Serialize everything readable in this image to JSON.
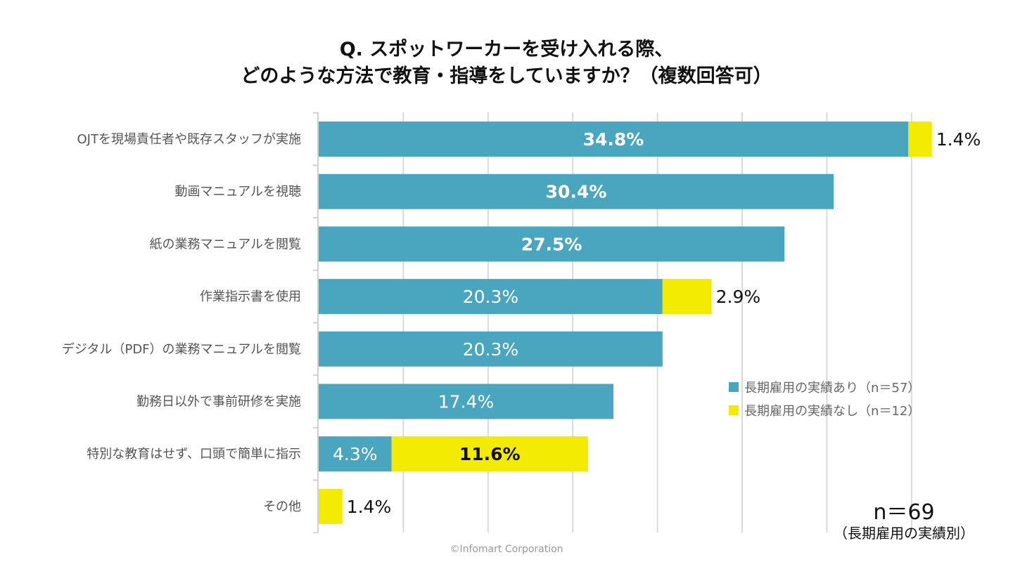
{
  "chart_data": {
    "type": "bar",
    "orientation": "horizontal",
    "stacked": true,
    "title": [
      "Q. スポットワーカーを受け入れる際、",
      "どのような方法で教育・指導をしていますか？（複数回答可）"
    ],
    "categories": [
      "OJTを現場責任者や既存スタッフが実施",
      "動画マニュアルを視聴",
      "紙の業務マニュアルを閲覧",
      "作業指示書を使用",
      "デジタル（PDF）の業務マニュアルを閲覧",
      "勤務日以外で事前研修を実施",
      "特別な教育はせず、口頭で簡単に指示",
      "その他"
    ],
    "series": [
      {
        "name": "長期雇用の実績あり（n＝57）",
        "color": "#4aa6be",
        "values": [
          34.8,
          30.4,
          27.5,
          20.3,
          20.3,
          17.4,
          4.3,
          0
        ],
        "labels": [
          "34.8%",
          "30.4%",
          "27.5%",
          "20.3%",
          "20.3%",
          "17.4%",
          "4.3%",
          ""
        ],
        "bold": [
          true,
          true,
          true,
          false,
          false,
          false,
          false,
          false
        ]
      },
      {
        "name": "長期雇用の実績なし（n＝12）",
        "color": "#f2eb00",
        "values": [
          1.4,
          0,
          0,
          2.9,
          0,
          0,
          11.6,
          1.4
        ],
        "labels": [
          "1.4%",
          "",
          "",
          "2.9%",
          "",
          "",
          "11.6%",
          "1.4%"
        ],
        "bold": [
          false,
          false,
          false,
          false,
          false,
          false,
          true,
          false
        ]
      }
    ],
    "xlim": [
      0,
      35
    ],
    "grid": true,
    "legend_position": "bottom-right",
    "sample_note": "n＝69",
    "sample_sub": "（長期雇用の実績別）"
  },
  "credit": "©Infomart Corporation"
}
